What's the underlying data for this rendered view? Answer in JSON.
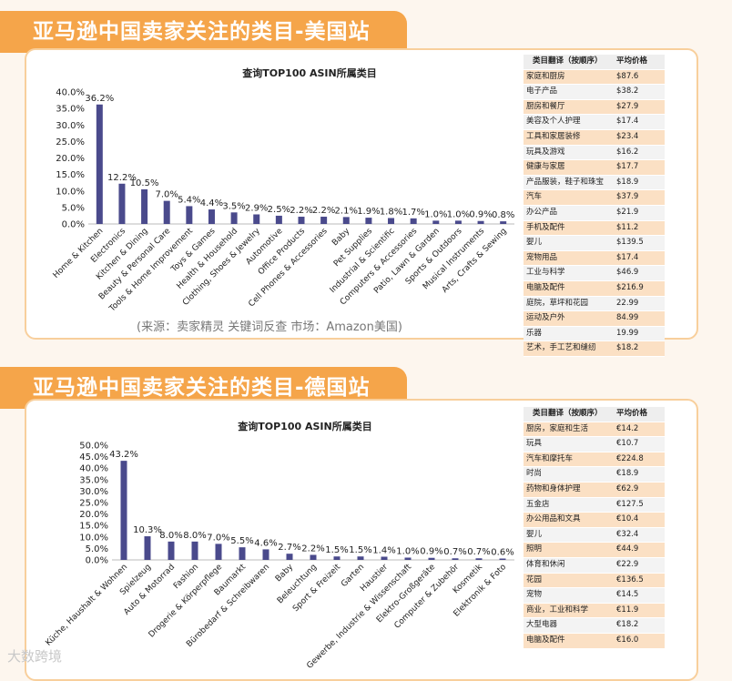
{
  "us": {
    "banner": "亚马逊中国卖家关注的类目-美国站",
    "source": "(来源：卖家精灵 关键词反查      市场：Amazon美国)",
    "table": {
      "headers": [
        "类目翻译（按顺序）",
        "平均价格"
      ],
      "rows": [
        [
          "家庭和厨房",
          "$87.6"
        ],
        [
          "电子产品",
          "$38.2"
        ],
        [
          "厨房和餐厅",
          "$27.9"
        ],
        [
          "美容及个人护理",
          "$17.4"
        ],
        [
          "工具和家居装修",
          "$23.4"
        ],
        [
          "玩具及游戏",
          "$16.2"
        ],
        [
          "健康与家居",
          "$17.7"
        ],
        [
          "产品服装，鞋子和珠宝",
          "$18.9"
        ],
        [
          "汽车",
          "$37.9"
        ],
        [
          "办公产品",
          "$21.9"
        ],
        [
          "手机及配件",
          "$11.2"
        ],
        [
          "婴儿",
          "$139.5"
        ],
        [
          "宠物用品",
          "$17.4"
        ],
        [
          "工业与科学",
          "$46.9"
        ],
        [
          "电脑及配件",
          "$216.9"
        ],
        [
          "庭院，草坪和花园",
          "22.99"
        ],
        [
          "运动及户外",
          "84.99"
        ],
        [
          "乐器",
          "19.99"
        ],
        [
          "艺术，手工艺和缝纫",
          "$18.2"
        ]
      ]
    }
  },
  "de": {
    "banner": "亚马逊中国卖家关注的类目-德国站",
    "table": {
      "headers": [
        "类目翻译（按顺序）",
        "平均价格"
      ],
      "rows": [
        [
          "厨房，家庭和生活",
          "€14.2"
        ],
        [
          "玩具",
          "€10.7"
        ],
        [
          "汽车和摩托车",
          "€224.8"
        ],
        [
          "时尚",
          "€18.9"
        ],
        [
          "药物和身体护理",
          "€62.9"
        ],
        [
          "五金店",
          "€127.5"
        ],
        [
          "办公用品和文具",
          "€10.4"
        ],
        [
          "婴儿",
          "€32.4"
        ],
        [
          "照明",
          "€44.9"
        ],
        [
          "体育和休闲",
          "€22.9"
        ],
        [
          "花园",
          "€136.5"
        ],
        [
          "宠物",
          "€14.5"
        ],
        [
          "商业，工业和科学",
          "€11.9"
        ],
        [
          "大型电器",
          "€18.2"
        ],
        [
          "电脑及配件",
          "€16.0"
        ]
      ]
    }
  },
  "chart_data": [
    {
      "type": "bar",
      "title": "查询TOP100 ASIN所属类目",
      "categories": [
        "Home & Kitchen",
        "Electronics",
        "Kitchen & Dining",
        "Beauty & Personal Care",
        "Tools & Home Improvement",
        "Toys & Games",
        "Health & Household",
        "Clothing, Shoes & Jewelry",
        "Automotive",
        "Office Products",
        "Cell Phones & Accessories",
        "Baby",
        "Pet Supplies",
        "Industrial & Scientific",
        "Computers & Accessories",
        "Patio, Lawn & Garden",
        "Sports & Outdoors",
        "Musical Instruments",
        "Arts, Crafts & Sewing"
      ],
      "values": [
        36.2,
        12.2,
        10.5,
        7.0,
        5.4,
        4.4,
        3.5,
        2.9,
        2.5,
        2.2,
        2.2,
        2.1,
        1.9,
        1.8,
        1.7,
        1.0,
        1.0,
        0.9,
        0.8
      ],
      "ylim": [
        0,
        40
      ],
      "yticks": [
        "0.0%",
        "5.0%",
        "10.0%",
        "15.0%",
        "20.0%",
        "25.0%",
        "30.0%",
        "35.0%",
        "40.0%"
      ],
      "color": "#4a4a8c"
    },
    {
      "type": "bar",
      "title": "查询TOP100 ASIN所属类目",
      "categories": [
        "Küche, Haushalt & Wohnen",
        "Spielzeug",
        "Auto & Motorrad",
        "Fashion",
        "Drogerie & Körperpflege",
        "Baumarkt",
        "Bürobedarf & Schreibwaren",
        "Baby",
        "Beleuchtung",
        "Sport & Freizeit",
        "Garten",
        "Haustier",
        "Gewerbe, Industrie & Wissenschaft",
        "Elektro-Großgeräte",
        "Computer & Zubehör",
        "Kosmetik",
        "Elektronik & Foto"
      ],
      "values": [
        43.2,
        10.3,
        8.0,
        8.0,
        7.0,
        5.5,
        4.6,
        2.7,
        2.2,
        1.5,
        1.5,
        1.4,
        1.0,
        0.9,
        0.7,
        0.7,
        0.6
      ],
      "ylim": [
        0,
        50
      ],
      "yticks": [
        "0.0%",
        "5.0%",
        "10.0%",
        "15.0%",
        "20.0%",
        "25.0%",
        "30.0%",
        "35.0%",
        "40.0%",
        "45.0%",
        "50.0%"
      ],
      "color": "#4a4a8c"
    }
  ],
  "watermark": "大数跨境"
}
